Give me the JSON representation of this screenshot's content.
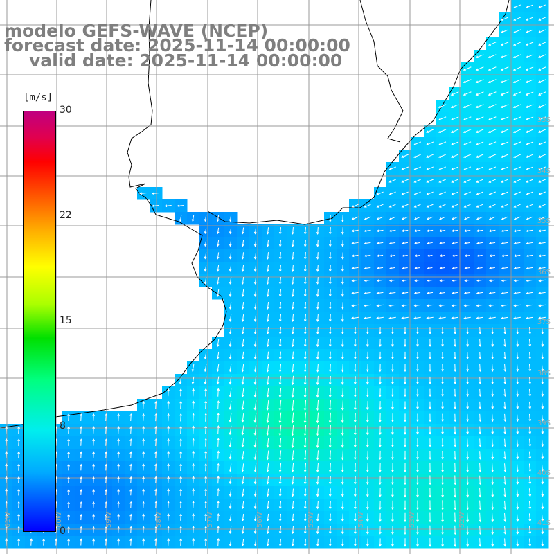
{
  "title": {
    "line1": "modelo GEFS-WAVE (NCEP)",
    "line2": "forecast date: 2025-11-14 00:00:00",
    "line3": "valid date: 2025-11-14 00:00:00"
  },
  "colorbar": {
    "unit": "[m/s]",
    "ticks": [
      "30",
      "22",
      "15",
      "8",
      "0"
    ],
    "tick_values": [
      30,
      22,
      15,
      8,
      0
    ],
    "colors": [
      "#0000ff",
      "#00aaff",
      "#00eeee",
      "#00ff80",
      "#00e000",
      "#aaff00",
      "#ffff00",
      "#ffaa00",
      "#ff5500",
      "#ff0000",
      "#e00050",
      "#c00080"
    ]
  },
  "lat_labels": [
    "33S",
    "34S",
    "35S",
    "36S",
    "37S",
    "38S",
    "39S",
    "40S",
    "41S"
  ],
  "lon_labels": [
    "61W",
    "60W",
    "59W",
    "58W",
    "57W",
    "56W",
    "55W",
    "54W",
    "53W",
    "52W"
  ],
  "map": {
    "land_color": "#ffffff",
    "coastline_color": "#000000",
    "gridline_color": "#999999",
    "vector_color": "#ffffff"
  }
}
